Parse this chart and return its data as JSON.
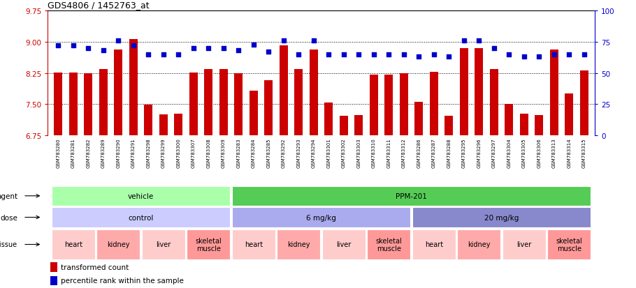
{
  "title": "GDS4806 / 1452763_at",
  "ylim_left": [
    6.75,
    9.75
  ],
  "ylim_right": [
    0,
    100
  ],
  "yticks_left": [
    6.75,
    7.5,
    8.25,
    9.0,
    9.75
  ],
  "yticks_right": [
    0,
    25,
    50,
    75,
    100
  ],
  "samples": [
    "GSM783280",
    "GSM783281",
    "GSM783282",
    "GSM783289",
    "GSM783290",
    "GSM783291",
    "GSM783298",
    "GSM783299",
    "GSM783300",
    "GSM783307",
    "GSM783308",
    "GSM783309",
    "GSM783283",
    "GSM783284",
    "GSM783285",
    "GSM783292",
    "GSM783293",
    "GSM783294",
    "GSM783301",
    "GSM783302",
    "GSM783303",
    "GSM783310",
    "GSM783311",
    "GSM783312",
    "GSM783286",
    "GSM783287",
    "GSM783288",
    "GSM783295",
    "GSM783296",
    "GSM783297",
    "GSM783304",
    "GSM783305",
    "GSM783306",
    "GSM783313",
    "GSM783314",
    "GSM783315"
  ],
  "bar_values": [
    8.26,
    8.26,
    8.25,
    8.35,
    8.82,
    9.07,
    7.48,
    7.25,
    7.27,
    8.26,
    8.34,
    8.34,
    8.25,
    7.83,
    8.08,
    8.92,
    8.35,
    8.82,
    7.53,
    7.22,
    7.24,
    8.21,
    8.21,
    8.25,
    7.55,
    8.28,
    7.22,
    8.85,
    8.85,
    8.35,
    7.5,
    7.27,
    7.24,
    8.82,
    7.75,
    8.31
  ],
  "percentile_values": [
    72,
    72,
    70,
    68,
    76,
    72,
    65,
    65,
    65,
    70,
    70,
    70,
    68,
    73,
    67,
    76,
    65,
    76,
    65,
    65,
    65,
    65,
    65,
    65,
    63,
    65,
    63,
    76,
    76,
    70,
    65,
    63,
    63,
    65,
    65,
    65
  ],
  "bar_color": "#CC0000",
  "percentile_color": "#0000CC",
  "bg_color": "#FFFFFF",
  "plot_bg": "#FFFFFF",
  "agent_groups": [
    {
      "label": "vehicle",
      "start": 0,
      "end": 11,
      "color": "#AAFFAA"
    },
    {
      "label": "PPM-201",
      "start": 12,
      "end": 35,
      "color": "#55CC55"
    }
  ],
  "dose_groups": [
    {
      "label": "control",
      "start": 0,
      "end": 11,
      "color": "#CCCCFF"
    },
    {
      "label": "6 mg/kg",
      "start": 12,
      "end": 23,
      "color": "#AAAAEE"
    },
    {
      "label": "20 mg/kg",
      "start": 24,
      "end": 35,
      "color": "#8888CC"
    }
  ],
  "tissue_groups": [
    {
      "label": "heart",
      "start": 0,
      "end": 2,
      "color": "#FFCCCC"
    },
    {
      "label": "kidney",
      "start": 3,
      "end": 5,
      "color": "#FFAAAA"
    },
    {
      "label": "liver",
      "start": 6,
      "end": 8,
      "color": "#FFCCCC"
    },
    {
      "label": "skeletal\nmuscle",
      "start": 9,
      "end": 11,
      "color": "#FF9999"
    },
    {
      "label": "heart",
      "start": 12,
      "end": 14,
      "color": "#FFCCCC"
    },
    {
      "label": "kidney",
      "start": 15,
      "end": 17,
      "color": "#FFAAAA"
    },
    {
      "label": "liver",
      "start": 18,
      "end": 20,
      "color": "#FFCCCC"
    },
    {
      "label": "skeletal\nmuscle",
      "start": 21,
      "end": 23,
      "color": "#FF9999"
    },
    {
      "label": "heart",
      "start": 24,
      "end": 26,
      "color": "#FFCCCC"
    },
    {
      "label": "kidney",
      "start": 27,
      "end": 29,
      "color": "#FFAAAA"
    },
    {
      "label": "liver",
      "start": 30,
      "end": 32,
      "color": "#FFCCCC"
    },
    {
      "label": "skeletal\nmuscle",
      "start": 33,
      "end": 35,
      "color": "#FF9999"
    }
  ],
  "legend_items": [
    {
      "label": "transformed count",
      "color": "#CC0000"
    },
    {
      "label": "percentile rank within the sample",
      "color": "#0000CC"
    }
  ]
}
